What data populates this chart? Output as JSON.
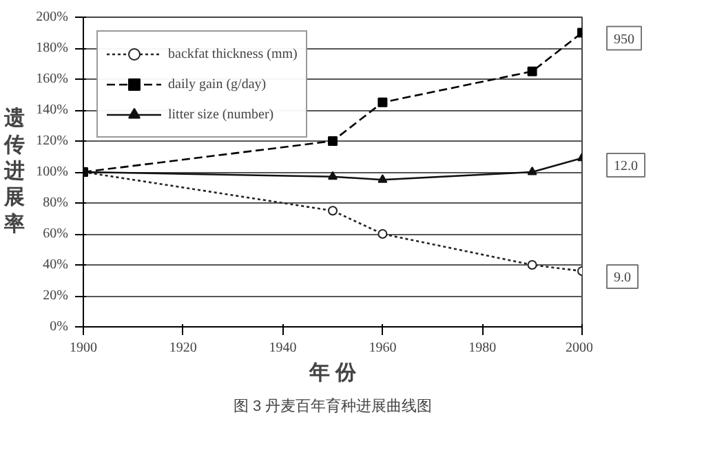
{
  "chart_data": {
    "type": "line",
    "ylabel": "遗传进展率",
    "xlabel": "年 份",
    "x": [
      1900,
      1950,
      1960,
      1990,
      2000
    ],
    "series": [
      {
        "name": "backfat thickness (mm)",
        "color": "#222222",
        "values": [
          100,
          75,
          60,
          40,
          36
        ],
        "marker": "circle",
        "line_style": "dotted"
      },
      {
        "name": "daily gain (g/day)",
        "color": "#000000",
        "values": [
          100,
          120,
          145,
          165,
          190
        ],
        "marker": "square",
        "line_style": "dashed"
      },
      {
        "name": "litter size (number)",
        "color": "#111111",
        "values": [
          100,
          97,
          95,
          100,
          109
        ],
        "marker": "triangle",
        "line_style": "solid"
      }
    ],
    "xlim": [
      1900,
      2000
    ],
    "xticks": [
      1900,
      1920,
      1940,
      1960,
      1980,
      2000
    ],
    "ylim": [
      0,
      200
    ],
    "yticks": [
      {
        "value": 0,
        "label": "0%"
      },
      {
        "value": 20,
        "label": "20%"
      },
      {
        "value": 40,
        "label": "40%"
      },
      {
        "value": 60,
        "label": "60%"
      },
      {
        "value": 80,
        "label": "80%"
      },
      {
        "value": 100,
        "label": "100%"
      },
      {
        "value": 120,
        "label": "120%"
      },
      {
        "value": 140,
        "label": "140%"
      },
      {
        "value": 160,
        "label": "160%"
      },
      {
        "value": 180,
        "label": "180%"
      },
      {
        "value": 200,
        "label": "200%"
      }
    ],
    "grid": "y",
    "legend": "top left",
    "annotations": [
      "950",
      "12.0",
      "9.0",
      "图 3 丹麦百年育种进展曲线图"
    ]
  }
}
